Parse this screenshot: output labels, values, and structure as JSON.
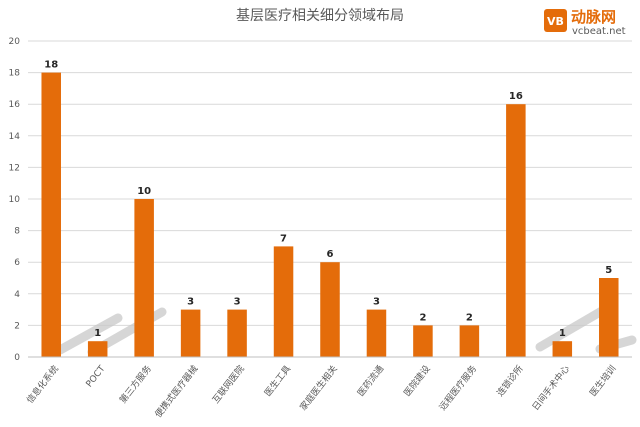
{
  "logo": {
    "mark": "VB",
    "name_cn": "动脉网",
    "name_en": "vcbeat.net"
  },
  "chart_data": {
    "type": "bar",
    "title": "基层医疗相关细分领域布局",
    "categories": [
      "信息化系统",
      "POCT",
      "第三方服务",
      "便携式医疗器械",
      "互联网医院",
      "医生工具",
      "家庭医生相关",
      "医药流通",
      "医院建设",
      "远程医疗服务",
      "连锁诊所",
      "日间手术中心",
      "医生培训"
    ],
    "values": [
      18,
      1,
      10,
      3,
      3,
      7,
      6,
      3,
      2,
      2,
      16,
      1,
      5
    ],
    "ylim": [
      0,
      20
    ],
    "yticks": [
      0,
      2,
      4,
      6,
      8,
      10,
      12,
      14,
      16,
      18,
      20
    ],
    "grid": true,
    "legend": "none",
    "colors": {
      "bar": "#e46c0a"
    }
  }
}
